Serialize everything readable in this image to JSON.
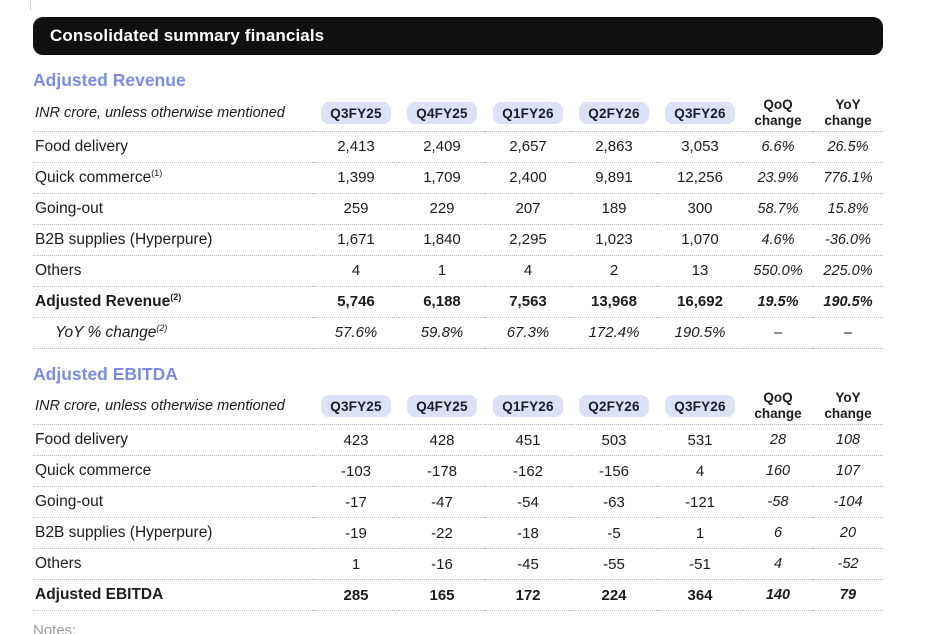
{
  "header": {
    "title": "Consolidated summary financials"
  },
  "colors": {
    "accent_blue": "#7b8de0",
    "pill_bg": "#dce1f6",
    "title_bar_bg": "#101010",
    "body_text": "#1c1c1c",
    "divider_dotted": "#bdbdbd",
    "notes_gray": "#9e9ea3"
  },
  "columns": [
    "Q3FY25",
    "Q4FY25",
    "Q1FY26",
    "Q2FY26",
    "Q3FY26"
  ],
  "change_columns": [
    {
      "line1": "QoQ",
      "line2": "change"
    },
    {
      "line1": "YoY",
      "line2": "change"
    }
  ],
  "sections": [
    {
      "title": "Adjusted Revenue",
      "unit_note": "INR crore, unless otherwise mentioned",
      "rows": [
        {
          "label": "Food delivery",
          "sup": "",
          "values": [
            "2,413",
            "2,409",
            "2,657",
            "2,863",
            "3,053"
          ],
          "qoq": "6.6%",
          "yoy": "26.5%",
          "style": "normal"
        },
        {
          "label": "Quick commerce",
          "sup": "(1)",
          "values": [
            "1,399",
            "1,709",
            "2,400",
            "9,891",
            "12,256"
          ],
          "qoq": "23.9%",
          "yoy": "776.1%",
          "style": "normal"
        },
        {
          "label": "Going-out",
          "sup": "",
          "values": [
            "259",
            "229",
            "207",
            "189",
            "300"
          ],
          "qoq": "58.7%",
          "yoy": "15.8%",
          "style": "normal"
        },
        {
          "label": "B2B supplies (Hyperpure)",
          "sup": "",
          "values": [
            "1,671",
            "1,840",
            "2,295",
            "1,023",
            "1,070"
          ],
          "qoq": "4.6%",
          "yoy": "-36.0%",
          "style": "normal"
        },
        {
          "label": "Others",
          "sup": "",
          "values": [
            "4",
            "1",
            "4",
            "2",
            "13"
          ],
          "qoq": "550.0%",
          "yoy": "225.0%",
          "style": "normal"
        },
        {
          "label": "Adjusted Revenue",
          "sup": "(2)",
          "values": [
            "5,746",
            "6,188",
            "7,563",
            "13,968",
            "16,692"
          ],
          "qoq": "19.5%",
          "yoy": "190.5%",
          "style": "total"
        },
        {
          "label": "YoY % change",
          "sup": "(2)",
          "values": [
            "57.6%",
            "59.8%",
            "67.3%",
            "172.4%",
            "190.5%"
          ],
          "qoq": "–",
          "yoy": "–",
          "style": "subitalic"
        }
      ]
    },
    {
      "title": "Adjusted EBITDA",
      "unit_note": "INR crore, unless otherwise mentioned",
      "rows": [
        {
          "label": "Food delivery",
          "sup": "",
          "values": [
            "423",
            "428",
            "451",
            "503",
            "531"
          ],
          "qoq": "28",
          "yoy": "108",
          "style": "normal"
        },
        {
          "label": "Quick commerce",
          "sup": "",
          "values": [
            "-103",
            "-178",
            "-162",
            "-156",
            "4"
          ],
          "qoq": "160",
          "yoy": "107",
          "style": "normal"
        },
        {
          "label": "Going-out",
          "sup": "",
          "values": [
            "-17",
            "-47",
            "-54",
            "-63",
            "-121"
          ],
          "qoq": "-58",
          "yoy": "-104",
          "style": "normal"
        },
        {
          "label": "B2B supplies (Hyperpure)",
          "sup": "",
          "values": [
            "-19",
            "-22",
            "-18",
            "-5",
            "1"
          ],
          "qoq": "6",
          "yoy": "20",
          "style": "normal"
        },
        {
          "label": "Others",
          "sup": "",
          "values": [
            "1",
            "-16",
            "-45",
            "-55",
            "-51"
          ],
          "qoq": "4",
          "yoy": "-52",
          "style": "normal"
        },
        {
          "label": "Adjusted EBITDA",
          "sup": "",
          "values": [
            "285",
            "165",
            "172",
            "224",
            "364"
          ],
          "qoq": "140",
          "yoy": "79",
          "style": "total"
        }
      ]
    }
  ],
  "footer": {
    "notes_label": "Notes:"
  }
}
